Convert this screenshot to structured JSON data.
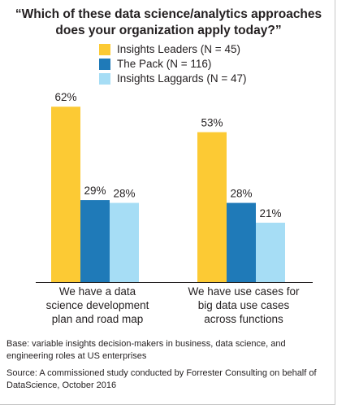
{
  "chart_data": {
    "type": "bar",
    "title_lines": [
      "“Which of these data science/analytics approaches",
      "does your organization apply today?”"
    ],
    "categories": [
      [
        "We have a data",
        "science development",
        "plan and road map"
      ],
      [
        "We have use cases for",
        "big data use cases",
        "across functions"
      ]
    ],
    "series": [
      {
        "name": "Insights Leaders (N = 45)",
        "color": "#fcca34",
        "values": [
          62,
          53
        ],
        "labels": [
          "62%",
          "53%"
        ]
      },
      {
        "name": "The Pack (N = 116)",
        "color": "#1f7ab8",
        "values": [
          29,
          28
        ],
        "labels": [
          "29%",
          "28%"
        ]
      },
      {
        "name": "Insights Laggards (N = 47)",
        "color": "#a6ddf5",
        "values": [
          28,
          21
        ],
        "labels": [
          "28%",
          "21%"
        ]
      }
    ],
    "ylim": [
      0,
      70
    ],
    "grid": false,
    "legend_position": "top-center"
  },
  "footnotes": {
    "base": "Base: variable insights decision-makers in business, data science, and engineering roles at US enterprises",
    "source": "Source: A commissioned study conducted by Forrester Consulting on behalf of DataScience, October 2016"
  }
}
